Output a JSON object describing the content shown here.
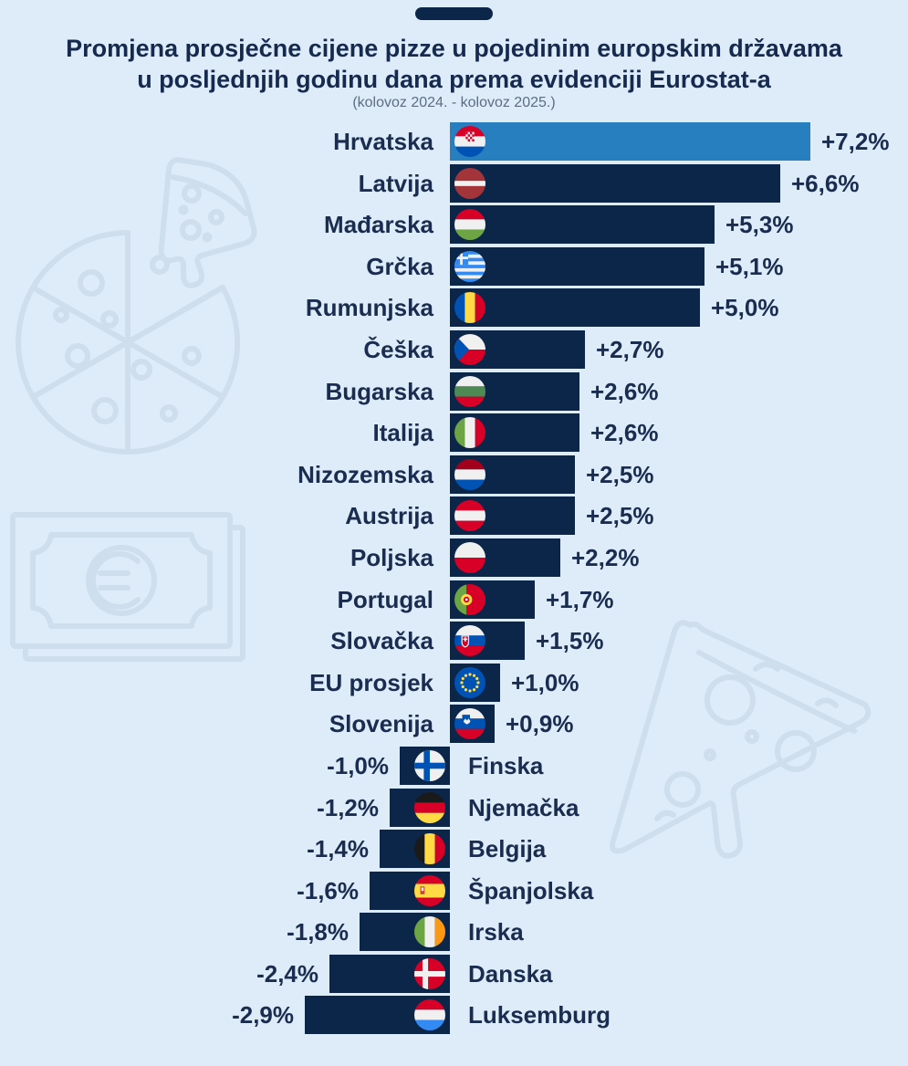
{
  "page": {
    "background_color": "#ddecf8",
    "text_color": "#1a2c50",
    "subtitle_color": "#5e6d82",
    "decoration_color": "#cbdbea"
  },
  "header": {
    "title_line1": "Promjena prosječne cijene pizze u pojedinim europskim državama",
    "title_line2": "u posljednjih godinu dana prema evidenciji Eurostat-a",
    "subtitle": "(kolovoz 2024. - kolovoz 2025.)"
  },
  "chart_data": {
    "type": "bar",
    "orientation": "horizontal",
    "unit": "%",
    "value_range": [
      -2.9,
      7.2
    ],
    "bar_color": "#0b2649",
    "highlight_color": "#277fc0",
    "items": [
      {
        "country": "Hrvatska",
        "value": 7.2,
        "label": "+7,2%",
        "flag": "hr",
        "highlight": true
      },
      {
        "country": "Latvija",
        "value": 6.6,
        "label": "+6,6%",
        "flag": "lv"
      },
      {
        "country": "Mađarska",
        "value": 5.3,
        "label": "+5,3%",
        "flag": "hu"
      },
      {
        "country": "Grčka",
        "value": 5.1,
        "label": "+5,1%",
        "flag": "gr"
      },
      {
        "country": "Rumunjska",
        "value": 5.0,
        "label": "+5,0%",
        "flag": "ro"
      },
      {
        "country": "Češka",
        "value": 2.7,
        "label": "+2,7%",
        "flag": "cz"
      },
      {
        "country": "Bugarska",
        "value": 2.6,
        "label": "+2,6%",
        "flag": "bg"
      },
      {
        "country": "Italija",
        "value": 2.6,
        "label": "+2,6%",
        "flag": "it"
      },
      {
        "country": "Nizozemska",
        "value": 2.5,
        "label": "+2,5%",
        "flag": "nl"
      },
      {
        "country": "Austrija",
        "value": 2.5,
        "label": "+2,5%",
        "flag": "at"
      },
      {
        "country": "Poljska",
        "value": 2.2,
        "label": "+2,2%",
        "flag": "pl"
      },
      {
        "country": "Portugal",
        "value": 1.7,
        "label": "+1,7%",
        "flag": "pt"
      },
      {
        "country": "Slovačka",
        "value": 1.5,
        "label": "+1,5%",
        "flag": "sk"
      },
      {
        "country": "EU prosjek",
        "value": 1.0,
        "label": "+1,0%",
        "flag": "eu"
      },
      {
        "country": "Slovenija",
        "value": 0.9,
        "label": "+0,9%",
        "flag": "si"
      },
      {
        "country": "Finska",
        "value": -1.0,
        "label": "-1,0%",
        "flag": "fi"
      },
      {
        "country": "Njemačka",
        "value": -1.2,
        "label": "-1,2%",
        "flag": "de"
      },
      {
        "country": "Belgija",
        "value": -1.4,
        "label": "-1,4%",
        "flag": "be"
      },
      {
        "country": "Španjolska",
        "value": -1.6,
        "label": "-1,6%",
        "flag": "es"
      },
      {
        "country": "Irska",
        "value": -1.8,
        "label": "-1,8%",
        "flag": "ie"
      },
      {
        "country": "Danska",
        "value": -2.4,
        "label": "-2,4%",
        "flag": "dk"
      },
      {
        "country": "Luksemburg",
        "value": -2.9,
        "label": "-2,9%",
        "flag": "lu"
      }
    ]
  },
  "flags": {
    "hr": [
      [
        "r",
        0,
        0,
        36,
        12,
        "#d80027"
      ],
      [
        "r",
        0,
        12,
        36,
        12,
        "#f0f0f0"
      ],
      [
        "r",
        0,
        24,
        36,
        12,
        "#0052b4"
      ],
      [
        "r",
        13,
        7,
        10,
        11,
        "#f0f0f0"
      ],
      [
        "r",
        13,
        7,
        2.5,
        2.75,
        "#d80027"
      ],
      [
        "r",
        18,
        7,
        2.5,
        2.75,
        "#d80027"
      ],
      [
        "r",
        15.5,
        9.75,
        2.5,
        2.75,
        "#d80027"
      ],
      [
        "r",
        20.5,
        9.75,
        2.5,
        2.75,
        "#d80027"
      ],
      [
        "r",
        13,
        12.5,
        2.5,
        2.75,
        "#d80027"
      ],
      [
        "r",
        18,
        12.5,
        2.5,
        2.75,
        "#d80027"
      ],
      [
        "r",
        15.5,
        15.25,
        2.5,
        2.75,
        "#d80027"
      ],
      [
        "r",
        20.5,
        15.25,
        2.5,
        2.75,
        "#d80027"
      ]
    ],
    "lv": [
      [
        "r",
        0,
        0,
        36,
        36,
        "#a2343a"
      ],
      [
        "r",
        0,
        15,
        36,
        6,
        "#f0f0f0"
      ]
    ],
    "hu": [
      [
        "r",
        0,
        0,
        36,
        12,
        "#d80027"
      ],
      [
        "r",
        0,
        12,
        36,
        12,
        "#f0f0f0"
      ],
      [
        "r",
        0,
        24,
        36,
        12,
        "#6da544"
      ]
    ],
    "gr": [
      [
        "r",
        0,
        0,
        36,
        36,
        "#338af3"
      ],
      [
        "r",
        0,
        4,
        36,
        4,
        "#f0f0f0"
      ],
      [
        "r",
        0,
        12,
        36,
        4,
        "#f0f0f0"
      ],
      [
        "r",
        0,
        20,
        36,
        4,
        "#f0f0f0"
      ],
      [
        "r",
        0,
        28,
        36,
        4,
        "#f0f0f0"
      ],
      [
        "r",
        0,
        0,
        16,
        16,
        "#338af3"
      ],
      [
        "r",
        6.5,
        0,
        3,
        16,
        "#f0f0f0"
      ],
      [
        "r",
        0,
        6.5,
        16,
        3,
        "#f0f0f0"
      ]
    ],
    "ro": [
      [
        "r",
        0,
        0,
        12,
        36,
        "#0052b4"
      ],
      [
        "r",
        12,
        0,
        12,
        36,
        "#ffda44"
      ],
      [
        "r",
        24,
        0,
        12,
        36,
        "#d80027"
      ]
    ],
    "cz": [
      [
        "r",
        0,
        0,
        36,
        18,
        "#f0f0f0"
      ],
      [
        "r",
        0,
        18,
        36,
        18,
        "#d80027"
      ],
      [
        "p",
        "M0,0 L17,18 L0,36 Z",
        "#0052b4"
      ]
    ],
    "bg": [
      [
        "r",
        0,
        0,
        36,
        12,
        "#f0f0f0"
      ],
      [
        "r",
        0,
        12,
        36,
        12,
        "#4f8a54"
      ],
      [
        "r",
        0,
        24,
        36,
        12,
        "#d80027"
      ]
    ],
    "it": [
      [
        "r",
        0,
        0,
        12,
        36,
        "#6da544"
      ],
      [
        "r",
        12,
        0,
        12,
        36,
        "#f0f0f0"
      ],
      [
        "r",
        24,
        0,
        12,
        36,
        "#d80027"
      ]
    ],
    "nl": [
      [
        "r",
        0,
        0,
        36,
        12,
        "#a2001d"
      ],
      [
        "r",
        0,
        12,
        36,
        12,
        "#f0f0f0"
      ],
      [
        "r",
        0,
        24,
        36,
        12,
        "#0052b4"
      ]
    ],
    "at": [
      [
        "r",
        0,
        0,
        36,
        12,
        "#d80027"
      ],
      [
        "r",
        0,
        12,
        36,
        12,
        "#f0f0f0"
      ],
      [
        "r",
        0,
        24,
        36,
        12,
        "#d80027"
      ]
    ],
    "pl": [
      [
        "r",
        0,
        0,
        36,
        18,
        "#f0f0f0"
      ],
      [
        "r",
        0,
        18,
        36,
        18,
        "#d80027"
      ]
    ],
    "pt": [
      [
        "r",
        0,
        0,
        14,
        36,
        "#6da544"
      ],
      [
        "r",
        14,
        0,
        22,
        36,
        "#d80027"
      ],
      [
        "c",
        14,
        18,
        6.5,
        "#ffda44"
      ],
      [
        "c",
        14,
        18,
        3.4,
        "#d80027"
      ],
      [
        "c",
        14,
        18,
        1.5,
        "#f0f0f0"
      ]
    ],
    "sk": [
      [
        "r",
        0,
        0,
        36,
        12,
        "#f0f0f0"
      ],
      [
        "r",
        0,
        12,
        36,
        12,
        "#0052b4"
      ],
      [
        "r",
        0,
        24,
        36,
        12,
        "#d80027"
      ],
      [
        "p",
        "M8,12 h9 v8 q0,4.5 -4.5,6 q-4.5,-1.5 -4.5,-6 Z",
        "#f0f0f0"
      ],
      [
        "p",
        "M9.3,13.2 h6.4 v6.6 q0,3.6 -3.2,4.8 q-3.2,-1.2 -3.2,-4.8 Z",
        "#d80027"
      ],
      [
        "r",
        11.6,
        14,
        1.8,
        5,
        "#f0f0f0"
      ],
      [
        "r",
        10,
        15.4,
        5,
        1.6,
        "#f0f0f0"
      ]
    ],
    "eu": [
      [
        "r",
        0,
        0,
        36,
        36,
        "#0052b4"
      ],
      [
        "c",
        27.5,
        18,
        1.7,
        "#ffda44"
      ],
      [
        "c",
        26.2,
        22.8,
        1.7,
        "#ffda44"
      ],
      [
        "c",
        22.8,
        26.2,
        1.7,
        "#ffda44"
      ],
      [
        "c",
        18,
        27.5,
        1.7,
        "#ffda44"
      ],
      [
        "c",
        13.2,
        26.2,
        1.7,
        "#ffda44"
      ],
      [
        "c",
        9.8,
        22.8,
        1.7,
        "#ffda44"
      ],
      [
        "c",
        8.5,
        18,
        1.7,
        "#ffda44"
      ],
      [
        "c",
        9.8,
        13.2,
        1.7,
        "#ffda44"
      ],
      [
        "c",
        13.2,
        9.8,
        1.7,
        "#ffda44"
      ],
      [
        "c",
        18,
        8.5,
        1.7,
        "#ffda44"
      ],
      [
        "c",
        22.8,
        9.8,
        1.7,
        "#ffda44"
      ],
      [
        "c",
        26.2,
        13.2,
        1.7,
        "#ffda44"
      ]
    ],
    "si": [
      [
        "r",
        0,
        0,
        36,
        12,
        "#f0f0f0"
      ],
      [
        "r",
        0,
        12,
        36,
        12,
        "#0052b4"
      ],
      [
        "r",
        0,
        24,
        36,
        12,
        "#d80027"
      ],
      [
        "p",
        "M9,7.5 h9 v7 q0,4 -4.5,5.5 q-4.5,-1.5 -4.5,-5.5 Z",
        "#0052b4"
      ],
      [
        "p",
        "M10.4,15 l2.2,-3 l1.9,2.2 l1.9,-2.2 l2.2,3 q-1.5,3 -4.1,3.6 q-2.6,-0.6 -4.1,-3.6 Z",
        "#f0f0f0"
      ]
    ],
    "fi": [
      [
        "r",
        0,
        0,
        36,
        36,
        "#f0f0f0"
      ],
      [
        "r",
        11,
        0,
        7,
        36,
        "#0052b4"
      ],
      [
        "r",
        0,
        14.5,
        36,
        7,
        "#0052b4"
      ]
    ],
    "de": [
      [
        "r",
        0,
        0,
        36,
        12,
        "#1a1a1a"
      ],
      [
        "r",
        0,
        12,
        36,
        12,
        "#d80027"
      ],
      [
        "r",
        0,
        24,
        36,
        12,
        "#ffda44"
      ]
    ],
    "be": [
      [
        "r",
        0,
        0,
        12,
        36,
        "#1a1a1a"
      ],
      [
        "r",
        12,
        0,
        12,
        36,
        "#ffda44"
      ],
      [
        "r",
        24,
        0,
        12,
        36,
        "#d80027"
      ]
    ],
    "es": [
      [
        "r",
        0,
        0,
        36,
        10,
        "#d80027"
      ],
      [
        "r",
        0,
        10,
        36,
        16,
        "#ffda44"
      ],
      [
        "r",
        0,
        26,
        36,
        10,
        "#d80027"
      ],
      [
        "r",
        7,
        13,
        5,
        9,
        "#c8413b"
      ],
      [
        "r",
        8.2,
        14.2,
        2.6,
        4,
        "#f0f0f0"
      ]
    ],
    "ie": [
      [
        "r",
        0,
        0,
        12,
        36,
        "#6da544"
      ],
      [
        "r",
        12,
        0,
        12,
        36,
        "#f0f0f0"
      ],
      [
        "r",
        24,
        0,
        12,
        36,
        "#ff9811"
      ]
    ],
    "dk": [
      [
        "r",
        0,
        0,
        36,
        36,
        "#d80027"
      ],
      [
        "r",
        9.5,
        0,
        6.5,
        36,
        "#f0f0f0"
      ],
      [
        "r",
        0,
        14.8,
        36,
        6.5,
        "#f0f0f0"
      ]
    ],
    "lu": [
      [
        "r",
        0,
        0,
        36,
        12,
        "#d80027"
      ],
      [
        "r",
        0,
        12,
        36,
        12,
        "#f0f0f0"
      ],
      [
        "r",
        0,
        24,
        36,
        12,
        "#338af3"
      ]
    ]
  }
}
